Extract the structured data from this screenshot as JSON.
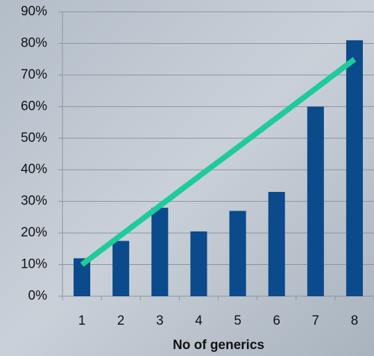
{
  "chart_data": {
    "type": "bar",
    "x_label": "No of generics",
    "categories": [
      "1",
      "2",
      "3",
      "4",
      "5",
      "6",
      "7",
      "8"
    ],
    "series": [
      {
        "type": "bar",
        "color": "#0b4a8b",
        "values": [
          12,
          17.5,
          28,
          20.5,
          27,
          33,
          60,
          81
        ]
      },
      {
        "type": "line",
        "color": "#1ecb9a",
        "values": [
          10,
          19.3,
          28.6,
          37.9,
          47.1,
          56.4,
          65.7,
          75
        ]
      }
    ],
    "ylim": [
      0,
      90
    ],
    "yticks": [
      {
        "value": 0,
        "label": "0%"
      },
      {
        "value": 10,
        "label": "10%"
      },
      {
        "value": 20,
        "label": "20%"
      },
      {
        "value": 30,
        "label": "30%"
      },
      {
        "value": 40,
        "label": "40%"
      },
      {
        "value": 50,
        "label": "50%"
      },
      {
        "value": 60,
        "label": "60%"
      },
      {
        "value": 70,
        "label": "70%"
      },
      {
        "value": 80,
        "label": "80%"
      },
      {
        "value": 90,
        "label": "90%"
      }
    ],
    "grid": true
  }
}
